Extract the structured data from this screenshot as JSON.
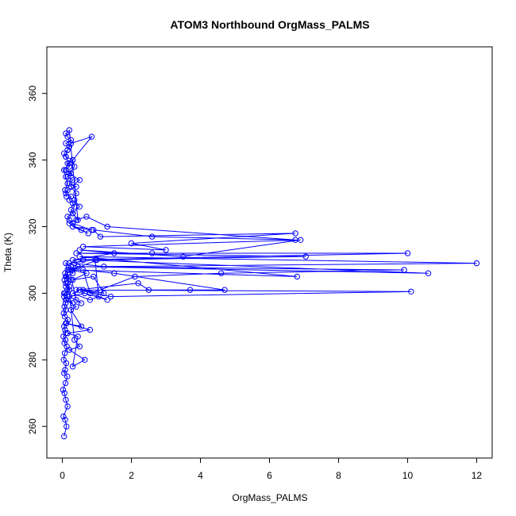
{
  "chart_data": {
    "type": "scatter",
    "title": "ATOM3 Northbound OrgMass_PALMS",
    "xlabel": "OrgMass_PALMS",
    "ylabel": "Theta (K)",
    "xlim": [
      -0.45,
      12.45
    ],
    "ylim": [
      250.5,
      374
    ],
    "x_ticks": [
      0,
      2,
      4,
      6,
      8,
      10,
      12
    ],
    "y_ticks": [
      260,
      280,
      300,
      320,
      340,
      360
    ],
    "series_color": "#0000ff",
    "marker": "open-circle",
    "connected": true,
    "series": [
      {
        "x": [
          0.05,
          0.12,
          0.08,
          0.03,
          0.15,
          0.1,
          0.06,
          0.02,
          0.09,
          0.14,
          0.05,
          0.08,
          0.11,
          0.04,
          0.07,
          0.13,
          0.06,
          0.09,
          0.03,
          0.1,
          0.08,
          0.05,
          0.12,
          0.16,
          0.07,
          0.04,
          0.1,
          0.06,
          0.09,
          0.11,
          0.05,
          0.08,
          0.14,
          0.2,
          0.1,
          0.06,
          0.12,
          0.08,
          0.15,
          0.25,
          0.1,
          0.35,
          0.5,
          0.2,
          0.65,
          0.3,
          0.45,
          0.15,
          0.8,
          0.1,
          0.55,
          0.25,
          0.4,
          0.1,
          0.3,
          0.15,
          0.05,
          0.2,
          0.1,
          0.15,
          0.25,
          0.1,
          0.3,
          0.2,
          0.4,
          0.55,
          0.2,
          0.65,
          1.3,
          0.6,
          1.2,
          0.9,
          0.3,
          0.7,
          0.25,
          0.45,
          0.2,
          0.95,
          1.05,
          0.8,
          0.3,
          0.5,
          1.4,
          10.1,
          0.4,
          2.2,
          2.5,
          3.7,
          4.7,
          1.5,
          0.6,
          0.8,
          1.1,
          2.1,
          4.6,
          9.9,
          0.45,
          10.6,
          0.6,
          0.35,
          1.2,
          12.0,
          0.5,
          6.8,
          0.3,
          1.0,
          7.05,
          0.4,
          2.6,
          10.0,
          0.3,
          1.5,
          0.5,
          3.5,
          6.9,
          0.6,
          3.0,
          2.0,
          6.75,
          1.1,
          0.9,
          2.6,
          6.75,
          1.3,
          0.7,
          0.4,
          0.2,
          0.55,
          0.75,
          0.3,
          0.85,
          0.3,
          0.2,
          0.15,
          0.3,
          0.25,
          0.35,
          0.3,
          0.2,
          0.25,
          0.1,
          0.15,
          0.4,
          0.2,
          0.3,
          0.15,
          0.25,
          0.1,
          0.2,
          0.15,
          0.3,
          0.1,
          0.05,
          0.15,
          0.2,
          0.1,
          0.25,
          0.15,
          0.1,
          0.2,
          0.45,
          0.3,
          0.5,
          0.35,
          0.4,
          0.25,
          0.5,
          0.2,
          0.35,
          0.3,
          0.85,
          0.25,
          0.15,
          0.1,
          0.2,
          0.05,
          0.1,
          0.15,
          0.08,
          0.12
        ],
        "y": [
          257,
          260,
          262,
          263,
          266,
          268,
          270,
          271,
          273,
          275,
          276,
          277,
          279,
          280,
          282,
          284,
          285,
          286,
          287,
          288,
          289,
          290,
          291,
          292,
          293,
          294,
          295,
          296,
          297,
          298,
          299,
          300,
          301,
          302,
          303,
          304,
          305,
          306,
          307,
          308,
          309,
          286,
          284,
          283,
          280,
          278,
          287,
          288,
          289,
          291,
          290,
          295,
          296,
          298,
          297,
          299,
          300,
          301,
          302,
          303,
          304,
          305,
          306,
          307,
          298,
          297,
          299,
          300,
          298,
          301,
          300,
          305,
          304,
          306,
          307,
          308,
          309,
          310,
          299,
          298,
          300,
          301,
          299,
          300.5,
          301,
          303,
          301,
          301,
          301,
          306,
          307,
          300,
          301,
          305,
          306,
          307,
          308,
          306,
          310,
          309,
          308,
          309,
          311,
          305,
          307,
          310,
          311,
          312,
          312,
          312,
          310,
          312,
          313,
          311,
          316,
          314,
          313,
          315,
          318,
          317,
          319,
          317,
          316,
          320,
          323,
          322,
          321,
          319,
          318,
          320,
          319,
          321,
          322,
          323,
          324,
          325,
          326,
          327,
          328,
          329,
          330,
          331,
          332,
          333,
          334,
          335,
          336,
          337,
          338,
          339,
          340,
          341,
          342,
          343,
          344,
          345,
          346,
          347,
          348,
          349,
          322,
          324,
          326,
          328,
          330,
          332,
          334,
          336,
          338,
          340,
          347,
          345,
          343,
          341,
          339,
          337,
          335,
          333,
          331,
          329
        ]
      }
    ]
  }
}
